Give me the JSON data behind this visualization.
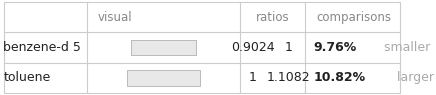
{
  "col_headers": [
    "",
    "visual",
    "ratios",
    "",
    "comparisons"
  ],
  "rows": [
    {
      "label": "benzene-d 5",
      "bar_width": 0.9024,
      "ratio1": "0.9024",
      "ratio2": "1",
      "comparison_pct": "9.76%",
      "comparison_word": " smaller",
      "pct_color": "#222222",
      "word_color": "#aaaaaa"
    },
    {
      "label": "toluene",
      "bar_width": 1.0,
      "ratio1": "1",
      "ratio2": "1.1082",
      "comparison_pct": "10.82%",
      "comparison_word": " larger",
      "pct_color": "#222222",
      "word_color": "#aaaaaa"
    }
  ],
  "bar_color": "#e8e8e8",
  "bar_edge_color": "#bbbbbb",
  "background_color": "#ffffff",
  "grid_color": "#cccccc",
  "header_color": "#888888",
  "text_color": "#222222",
  "font_size": 9,
  "header_font_size": 8.5
}
